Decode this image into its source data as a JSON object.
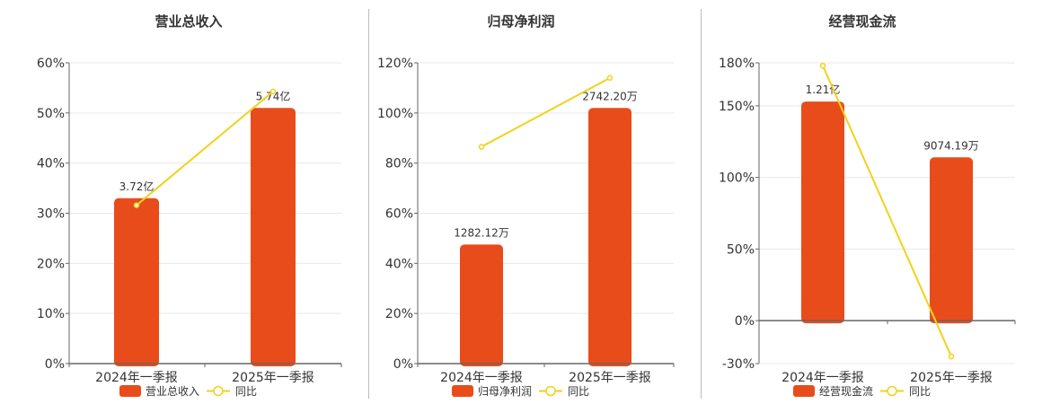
{
  "colors": {
    "bar": "#E84C1A",
    "line": "#F2D21B",
    "grid": "#E8E8E8",
    "axis": "#666666",
    "divider": "#BBBBBB"
  },
  "chart_data": [
    {
      "type": "bar",
      "title": "营业总收入",
      "categories": [
        "2024年一季报",
        "2025年一季报"
      ],
      "ylim": [
        0,
        60
      ],
      "yticks": [
        0,
        10,
        20,
        30,
        40,
        50,
        60
      ],
      "ytick_labels": [
        "0%",
        "10%",
        "20%",
        "30%",
        "40%",
        "50%",
        "60%"
      ],
      "grid": true,
      "legend_position": "bottom",
      "series": [
        {
          "name": "营业总收入",
          "type": "bar",
          "values": [
            33,
            51
          ],
          "labels": [
            "3.72亿",
            "5.74亿"
          ]
        },
        {
          "name": "同比",
          "type": "line",
          "values": [
            31.6,
            54.3
          ]
        }
      ]
    },
    {
      "type": "bar",
      "title": "归母净利润",
      "categories": [
        "2024年一季报",
        "2025年一季报"
      ],
      "ylim": [
        0,
        120
      ],
      "yticks": [
        0,
        20,
        40,
        60,
        80,
        100,
        120
      ],
      "ytick_labels": [
        "0%",
        "20%",
        "40%",
        "60%",
        "80%",
        "100%",
        "120%"
      ],
      "grid": true,
      "legend_position": "bottom",
      "series": [
        {
          "name": "归母净利润",
          "type": "bar",
          "values": [
            47.5,
            102
          ],
          "labels": [
            "1282.12万",
            "2742.20万"
          ]
        },
        {
          "name": "同比",
          "type": "line",
          "values": [
            86.5,
            114
          ]
        }
      ]
    },
    {
      "type": "bar",
      "title": "经营现金流",
      "categories": [
        "2024年一季报",
        "2025年一季报"
      ],
      "ylim": [
        -30,
        180
      ],
      "yticks": [
        -30,
        0,
        50,
        100,
        150,
        180
      ],
      "ytick_labels": [
        "-30%",
        "0%",
        "50%",
        "100%",
        "150%",
        "180%"
      ],
      "grid": true,
      "legend_position": "bottom",
      "series": [
        {
          "name": "经营现金流",
          "type": "bar",
          "values": [
            153,
            114
          ],
          "labels": [
            "1.21亿",
            "9074.19万"
          ]
        },
        {
          "name": "同比",
          "type": "line",
          "values": [
            178,
            -25
          ]
        }
      ]
    }
  ]
}
